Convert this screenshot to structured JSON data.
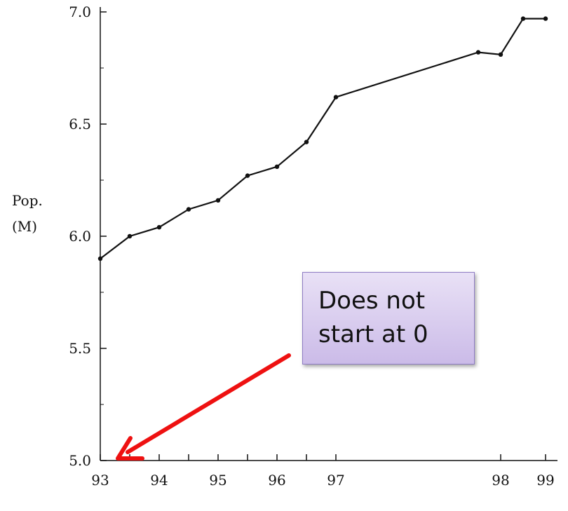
{
  "chart_data": {
    "type": "line",
    "title": "",
    "xlabel": "",
    "ylabel": "Pop.\n(M)",
    "ylabel_lines": [
      "Pop.",
      "(M)"
    ],
    "ylim": [
      5.0,
      7.1
    ],
    "x_tick_labels": [
      "93",
      "94",
      "95",
      "96",
      "97",
      "98",
      "99"
    ],
    "y_tick_labels": [
      "5.0",
      "5.5",
      "6.0",
      "6.5",
      "7.0"
    ],
    "y_ticks": [
      5.0,
      5.5,
      6.0,
      6.5,
      7.0
    ],
    "grid": false,
    "series": [
      {
        "x": [
          93,
          93.5,
          94,
          94.5,
          95,
          95.5,
          96,
          96.5,
          97,
          97.5,
          98,
          98.5,
          99
        ],
        "values": [
          5.9,
          6.0,
          6.04,
          6.12,
          6.16,
          6.27,
          6.31,
          6.42,
          6.62,
          6.82,
          6.81,
          6.97,
          6.97
        ],
        "color": "#111111"
      }
    ]
  },
  "annotation": {
    "text_lines": [
      "Does not",
      "start at 0"
    ],
    "arrow_color": "#ee1111"
  }
}
